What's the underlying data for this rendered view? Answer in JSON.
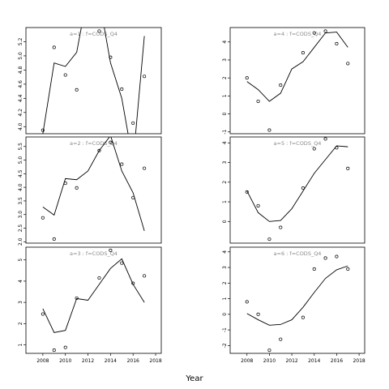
{
  "chart_data": {
    "type": "scatter",
    "xlabel": "Year",
    "xlim": [
      2006.5,
      2018.5
    ],
    "xticks": [
      2008,
      2010,
      2012,
      2014,
      2016,
      2018
    ],
    "panels": [
      {
        "title": "a=1 : f=CODS_Q4",
        "ylim": [
          3.9,
          5.4
        ],
        "yticks": [
          4.0,
          4.2,
          4.4,
          4.6,
          4.8,
          5.0,
          5.2
        ],
        "points": [
          [
            2008,
            3.95
          ],
          [
            2009,
            5.12
          ],
          [
            2010,
            4.73
          ],
          [
            2011,
            4.52
          ],
          [
            2013,
            5.35
          ],
          [
            2014,
            4.98
          ],
          [
            2015,
            4.53
          ],
          [
            2016,
            4.05
          ],
          [
            2017,
            4.71
          ]
        ],
        "fit": [
          [
            2008,
            3.9
          ],
          [
            2009,
            4.9
          ],
          [
            2010,
            4.85
          ],
          [
            2011,
            5.05
          ],
          [
            2012,
            5.9
          ],
          [
            2013,
            5.8
          ],
          [
            2014,
            4.9
          ],
          [
            2015,
            4.4
          ],
          [
            2016,
            3.5
          ],
          [
            2017,
            5.28
          ]
        ]
      },
      {
        "title": "a=4 : f=CODS_Q4",
        "ylim": [
          -1.1,
          4.8
        ],
        "yticks": [
          -1,
          0,
          1,
          2,
          3,
          4
        ],
        "points": [
          [
            2008,
            2.0
          ],
          [
            2009,
            0.7
          ],
          [
            2010,
            -0.9
          ],
          [
            2011,
            1.6
          ],
          [
            2013,
            3.4
          ],
          [
            2014,
            4.5
          ],
          [
            2015,
            4.6
          ],
          [
            2016,
            3.9
          ],
          [
            2017,
            2.8
          ]
        ],
        "fit": [
          [
            2008,
            1.8
          ],
          [
            2009,
            1.35
          ],
          [
            2010,
            0.7
          ],
          [
            2011,
            1.15
          ],
          [
            2012,
            2.5
          ],
          [
            2013,
            2.9
          ],
          [
            2014,
            3.7
          ],
          [
            2015,
            4.5
          ],
          [
            2016,
            4.55
          ],
          [
            2017,
            3.7
          ]
        ]
      },
      {
        "title": "a=2 : f=CODS_Q4",
        "ylim": [
          1.95,
          5.85
        ],
        "yticks": [
          2.0,
          2.5,
          3.0,
          3.5,
          4.0,
          4.5,
          5.0,
          5.5
        ],
        "points": [
          [
            2008,
            2.88
          ],
          [
            2009,
            2.1
          ],
          [
            2010,
            4.15
          ],
          [
            2011,
            3.98
          ],
          [
            2013,
            5.35
          ],
          [
            2014,
            5.65
          ],
          [
            2015,
            4.85
          ],
          [
            2016,
            3.62
          ],
          [
            2017,
            4.7
          ]
        ],
        "fit": [
          [
            2008,
            3.28
          ],
          [
            2009,
            2.98
          ],
          [
            2010,
            4.32
          ],
          [
            2011,
            4.28
          ],
          [
            2012,
            4.6
          ],
          [
            2013,
            5.35
          ],
          [
            2014,
            5.9
          ],
          [
            2015,
            4.6
          ],
          [
            2016,
            3.8
          ],
          [
            2017,
            2.4
          ]
        ]
      },
      {
        "title": "a=5 : f=CODS_Q4",
        "ylim": [
          -1.1,
          4.3
        ],
        "yticks": [
          0,
          1,
          2,
          3,
          4
        ],
        "points": [
          [
            2008,
            1.5
          ],
          [
            2009,
            0.8
          ],
          [
            2010,
            -0.9
          ],
          [
            2011,
            -0.3
          ],
          [
            2013,
            1.7
          ],
          [
            2014,
            3.7
          ],
          [
            2015,
            4.2
          ],
          [
            2016,
            3.75
          ],
          [
            2017,
            2.7
          ]
        ],
        "fit": [
          [
            2008,
            1.55
          ],
          [
            2009,
            0.45
          ],
          [
            2010,
            0.0
          ],
          [
            2011,
            0.05
          ],
          [
            2012,
            0.65
          ],
          [
            2013,
            1.55
          ],
          [
            2014,
            2.45
          ],
          [
            2015,
            3.15
          ],
          [
            2016,
            3.85
          ],
          [
            2017,
            3.8
          ]
        ]
      },
      {
        "title": "a=3 : f=CODS_Q4",
        "ylim": [
          0.6,
          5.6
        ],
        "yticks": [
          1,
          2,
          3,
          4,
          5
        ],
        "points": [
          [
            2008,
            2.45
          ],
          [
            2009,
            0.75
          ],
          [
            2010,
            0.88
          ],
          [
            2011,
            3.2
          ],
          [
            2013,
            4.15
          ],
          [
            2014,
            5.45
          ],
          [
            2015,
            4.85
          ],
          [
            2016,
            3.9
          ],
          [
            2017,
            4.25
          ]
        ],
        "fit": [
          [
            2008,
            2.7
          ],
          [
            2009,
            1.58
          ],
          [
            2010,
            1.68
          ],
          [
            2011,
            3.18
          ],
          [
            2012,
            3.1
          ],
          [
            2013,
            3.85
          ],
          [
            2014,
            4.6
          ],
          [
            2015,
            5.05
          ],
          [
            2016,
            3.85
          ],
          [
            2017,
            3.0
          ]
        ]
      },
      {
        "title": "a=6 : f=CODS_Q4",
        "ylim": [
          -2.5,
          4.3
        ],
        "yticks": [
          -2,
          -1,
          0,
          1,
          2,
          3,
          4
        ],
        "points": [
          [
            2008,
            0.8
          ],
          [
            2009,
            0.0
          ],
          [
            2010,
            -2.3
          ],
          [
            2011,
            -1.6
          ],
          [
            2013,
            -0.2
          ],
          [
            2014,
            2.9
          ],
          [
            2015,
            3.6
          ],
          [
            2016,
            3.7
          ],
          [
            2017,
            2.9
          ]
        ],
        "fit": [
          [
            2008,
            0.05
          ],
          [
            2009,
            -0.35
          ],
          [
            2010,
            -0.7
          ],
          [
            2011,
            -0.65
          ],
          [
            2012,
            -0.35
          ],
          [
            2013,
            0.45
          ],
          [
            2014,
            1.4
          ],
          [
            2015,
            2.3
          ],
          [
            2016,
            2.85
          ],
          [
            2017,
            3.1
          ]
        ]
      }
    ]
  }
}
